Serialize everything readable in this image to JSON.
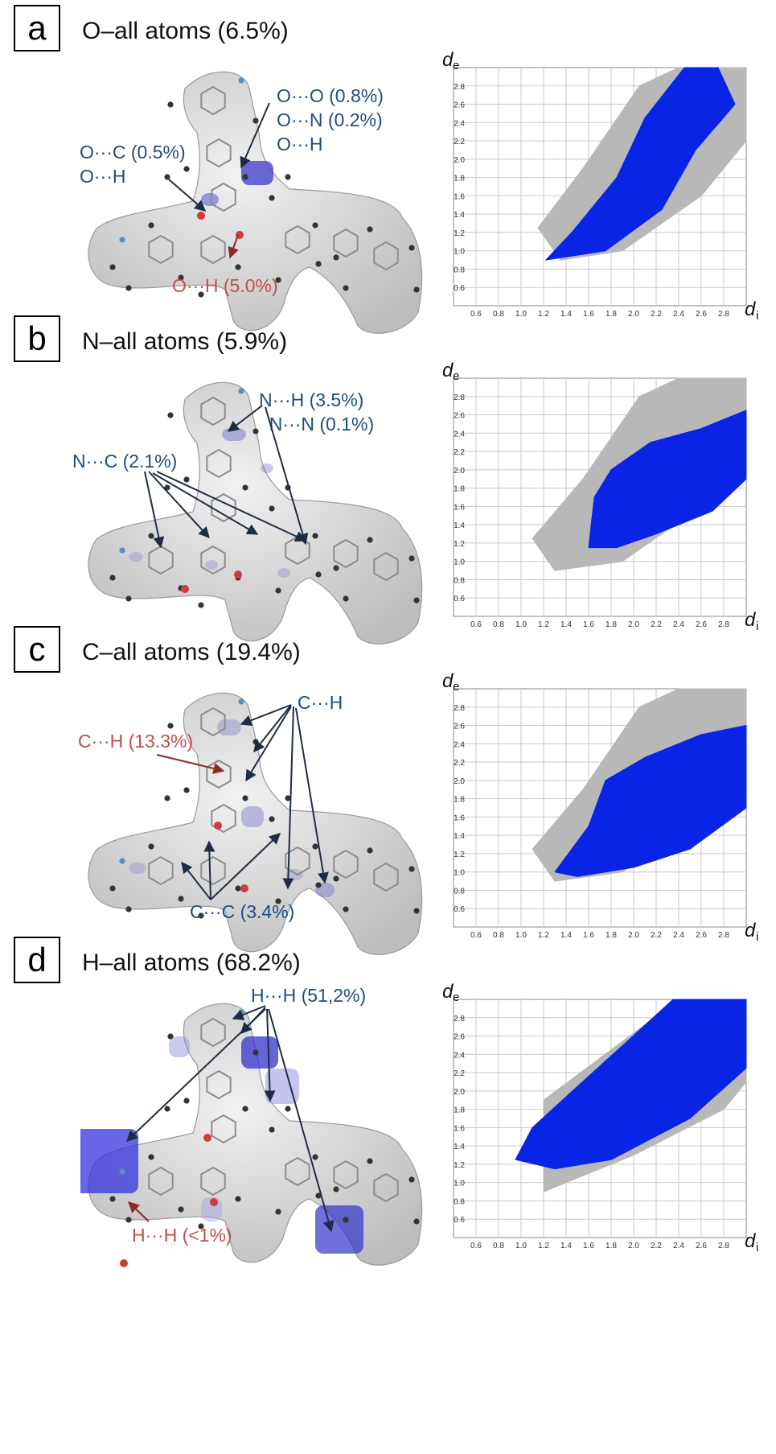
{
  "colors": {
    "surface": "#dadada",
    "annotation_blue": "#1f4e79",
    "annotation_red": "#c0504d",
    "fingerprint_all": "#b8b8b8",
    "fingerprint_highlight": "#0a24e6"
  },
  "panels": [
    {
      "letter": "a",
      "title": "O–all atoms (6.5%)",
      "surface_tint": "light",
      "annotations": [
        {
          "text": "O···O (0.8%)\nO···N (0.2%)\nO···H",
          "color": "blue"
        },
        {
          "text": "O···C (0.5%)\nO···H",
          "color": "blue"
        },
        {
          "text": "O···H (5.0%)",
          "color": "red"
        }
      ]
    },
    {
      "letter": "b",
      "title": "N–all atoms (5.9%)",
      "surface_tint": "light",
      "annotations": [
        {
          "text": "N···H (3.5%)\n  N···N (0.1%)",
          "color": "blue"
        },
        {
          "text": "N···C (2.1%)",
          "color": "blue"
        }
      ]
    },
    {
      "letter": "c",
      "title": "C–all atoms (19.4%)",
      "surface_tint": "light",
      "annotations": [
        {
          "text": "C···H",
          "color": "blue"
        },
        {
          "text": "C···H (13.3%)",
          "color": "red"
        },
        {
          "text": "C···C (3.4%)",
          "color": "blue"
        }
      ]
    },
    {
      "letter": "d",
      "title": "H–all atoms (68.2%)",
      "surface_tint": "strong",
      "annotations": [
        {
          "text": "H···H (51,2%)",
          "color": "blue"
        },
        {
          "text": "H···H (<1%)",
          "color": "red"
        }
      ]
    }
  ],
  "chart_data": [
    {
      "type": "scatter",
      "panel": "a",
      "xlabel": "d",
      "xlabel_sub": "i",
      "ylabel": "d",
      "ylabel_sub": "e",
      "xlim": [
        0.4,
        3.0
      ],
      "ylim": [
        0.4,
        3.0
      ],
      "x_ticks": [
        "0.6",
        "0.8",
        "1.0",
        "1.2",
        "1.4",
        "1.6",
        "1.8",
        "2.0",
        "2.2",
        "2.4",
        "2.6",
        "2.8"
      ],
      "y_ticks": [
        "0.6",
        "0.8",
        "1.0",
        "1.2",
        "1.4",
        "1.6",
        "1.8",
        "2.0",
        "2.2",
        "2.4",
        "2.6",
        "2.8"
      ],
      "grid": true,
      "series": [
        {
          "role": "all contacts",
          "color": "#b8b8b8",
          "outline": [
            [
              1.15,
              1.25
            ],
            [
              1.55,
              1.9
            ],
            [
              2.05,
              2.8
            ],
            [
              2.4,
              3.0
            ],
            [
              3.0,
              3.0
            ],
            [
              3.0,
              2.2
            ],
            [
              2.6,
              1.6
            ],
            [
              1.9,
              1.0
            ],
            [
              1.35,
              0.9
            ],
            [
              1.15,
              1.25
            ]
          ]
        },
        {
          "role": "selected contacts",
          "color": "#0a24e6",
          "outline": [
            [
              1.22,
              0.9
            ],
            [
              1.45,
              1.2
            ],
            [
              1.85,
              1.8
            ],
            [
              2.1,
              2.45
            ],
            [
              2.45,
              3.0
            ],
            [
              2.75,
              3.0
            ],
            [
              2.9,
              2.6
            ],
            [
              2.55,
              2.1
            ],
            [
              2.25,
              1.45
            ],
            [
              1.75,
              1.0
            ],
            [
              1.22,
              0.9
            ]
          ]
        }
      ]
    },
    {
      "type": "scatter",
      "panel": "b",
      "xlabel": "d",
      "xlabel_sub": "i",
      "ylabel": "d",
      "ylabel_sub": "e",
      "xlim": [
        0.4,
        3.0
      ],
      "ylim": [
        0.4,
        3.0
      ],
      "x_ticks": [
        "0.6",
        "0.8",
        "1.0",
        "1.2",
        "1.4",
        "1.6",
        "1.8",
        "2.0",
        "2.2",
        "2.4",
        "2.6",
        "2.8"
      ],
      "y_ticks": [
        "0.6",
        "0.8",
        "1.0",
        "1.2",
        "1.4",
        "1.6",
        "1.8",
        "2.0",
        "2.2",
        "2.4",
        "2.6",
        "2.8"
      ],
      "grid": true,
      "series": [
        {
          "role": "all contacts",
          "color": "#b8b8b8",
          "outline": [
            [
              1.1,
              1.25
            ],
            [
              1.55,
              1.9
            ],
            [
              2.05,
              2.8
            ],
            [
              2.4,
              3.0
            ],
            [
              3.0,
              3.0
            ],
            [
              3.0,
              2.2
            ],
            [
              2.6,
              1.6
            ],
            [
              1.9,
              1.0
            ],
            [
              1.3,
              0.9
            ],
            [
              1.1,
              1.25
            ]
          ]
        },
        {
          "role": "selected contacts",
          "color": "#0a24e6",
          "outline": [
            [
              1.6,
              1.15
            ],
            [
              1.65,
              1.7
            ],
            [
              1.8,
              2.0
            ],
            [
              2.15,
              2.3
            ],
            [
              2.6,
              2.45
            ],
            [
              3.0,
              2.65
            ],
            [
              3.0,
              1.9
            ],
            [
              2.7,
              1.55
            ],
            [
              2.2,
              1.3
            ],
            [
              1.85,
              1.15
            ],
            [
              1.6,
              1.15
            ]
          ]
        }
      ]
    },
    {
      "type": "scatter",
      "panel": "c",
      "xlabel": "d",
      "xlabel_sub": "i",
      "ylabel": "d",
      "ylabel_sub": "e",
      "xlim": [
        0.4,
        3.0
      ],
      "ylim": [
        0.4,
        3.0
      ],
      "x_ticks": [
        "0.6",
        "0.8",
        "1.0",
        "1.2",
        "1.4",
        "1.6",
        "1.8",
        "2.0",
        "2.2",
        "2.4",
        "2.6",
        "2.8"
      ],
      "y_ticks": [
        "0.6",
        "0.8",
        "1.0",
        "1.2",
        "1.4",
        "1.6",
        "1.8",
        "2.0",
        "2.2",
        "2.4",
        "2.6",
        "2.8"
      ],
      "grid": true,
      "series": [
        {
          "role": "all contacts",
          "color": "#b8b8b8",
          "outline": [
            [
              1.1,
              1.25
            ],
            [
              1.55,
              1.9
            ],
            [
              2.05,
              2.8
            ],
            [
              2.4,
              3.0
            ],
            [
              3.0,
              3.0
            ],
            [
              3.0,
              2.2
            ],
            [
              2.6,
              1.6
            ],
            [
              1.9,
              1.0
            ],
            [
              1.3,
              0.9
            ],
            [
              1.1,
              1.25
            ]
          ]
        },
        {
          "role": "selected contacts",
          "color": "#0a24e6",
          "outline": [
            [
              1.3,
              1.0
            ],
            [
              1.6,
              1.5
            ],
            [
              1.75,
              2.0
            ],
            [
              2.1,
              2.25
            ],
            [
              2.6,
              2.5
            ],
            [
              3.0,
              2.6
            ],
            [
              3.0,
              1.7
            ],
            [
              2.5,
              1.25
            ],
            [
              2.0,
              1.05
            ],
            [
              1.5,
              0.95
            ],
            [
              1.3,
              1.0
            ]
          ]
        }
      ]
    },
    {
      "type": "scatter",
      "panel": "d",
      "xlabel": "d",
      "xlabel_sub": "i",
      "ylabel": "d",
      "ylabel_sub": "e",
      "xlim": [
        0.4,
        3.0
      ],
      "ylim": [
        0.4,
        3.0
      ],
      "x_ticks": [
        "0.6",
        "0.8",
        "1.0",
        "1.2",
        "1.4",
        "1.6",
        "1.8",
        "2.0",
        "2.2",
        "2.4",
        "2.6",
        "2.8"
      ],
      "y_ticks": [
        "0.6",
        "0.8",
        "1.0",
        "1.2",
        "1.4",
        "1.6",
        "1.8",
        "2.0",
        "2.2",
        "2.4",
        "2.6",
        "2.8"
      ],
      "grid": true,
      "series": [
        {
          "role": "all contacts",
          "color": "#b8b8b8",
          "outline": [
            [
              1.2,
              0.9
            ],
            [
              2.0,
              1.3
            ],
            [
              2.8,
              1.8
            ],
            [
              3.0,
              2.1
            ],
            [
              3.0,
              3.0
            ],
            [
              2.4,
              3.0
            ],
            [
              1.2,
              1.9
            ],
            [
              1.2,
              0.9
            ]
          ]
        },
        {
          "role": "selected contacts",
          "color": "#0a24e6",
          "outline": [
            [
              0.95,
              1.25
            ],
            [
              1.1,
              1.6
            ],
            [
              1.5,
              2.05
            ],
            [
              1.95,
              2.55
            ],
            [
              2.35,
              3.0
            ],
            [
              3.0,
              3.0
            ],
            [
              3.0,
              2.25
            ],
            [
              2.5,
              1.7
            ],
            [
              1.8,
              1.25
            ],
            [
              1.3,
              1.15
            ],
            [
              0.95,
              1.25
            ]
          ]
        }
      ]
    }
  ]
}
